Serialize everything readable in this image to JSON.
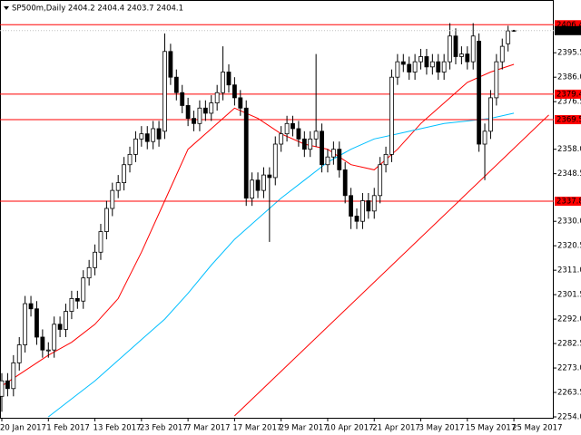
{
  "chart_data": {
    "type": "candlestick",
    "title": "SP500m,Daily  2404.2 2404.4 2403.7 2404.1",
    "categories": [
      "20 Jan 2017",
      null,
      null,
      null,
      null,
      null,
      null,
      null,
      "1 Feb 2017",
      null,
      null,
      null,
      null,
      null,
      null,
      null,
      "13 Feb 2017",
      null,
      null,
      null,
      null,
      null,
      null,
      null,
      "23 Feb 2017",
      null,
      null,
      null,
      null,
      null,
      null,
      null,
      "7 Mar 2017",
      null,
      null,
      null,
      null,
      null,
      null,
      null,
      "17 Mar 2017",
      null,
      null,
      null,
      null,
      null,
      null,
      null,
      "29 Mar 2017",
      null,
      null,
      null,
      null,
      null,
      null,
      null,
      "10 Apr 2017",
      null,
      null,
      null,
      null,
      null,
      null,
      null,
      "21 Apr 2017",
      null,
      null,
      null,
      null,
      null,
      null,
      null,
      "3 May 2017",
      null,
      null,
      null,
      null,
      null,
      null,
      null,
      "15 May 2017",
      null,
      null,
      null,
      null,
      null,
      null,
      null,
      "25 May 2017"
    ],
    "open": [
      2262,
      2268,
      2265,
      2275,
      2282,
      2298,
      2296,
      2285,
      2280,
      2280,
      2290,
      2288,
      2295,
      2300,
      2299,
      2308,
      2312,
      2318,
      2326,
      2335,
      2342,
      2345,
      2352,
      2356,
      2362,
      2364,
      2361,
      2366,
      2365,
      2396,
      2386,
      2380,
      2375,
      2370,
      2368,
      2374,
      2372,
      2376,
      2380,
      2388,
      2383,
      2378,
      2374,
      2339,
      2346,
      2342,
      2348,
      2347,
      2360,
      2364,
      2368,
      2366,
      2362,
      2358,
      2362,
      2365,
      2352,
      2355,
      2358,
      2350,
      2340,
      2332,
      2330,
      2338,
      2334,
      2340,
      2352,
      2356,
      2386,
      2392,
      2391,
      2388,
      2392,
      2394,
      2390,
      2392,
      2388,
      2392,
      2402,
      2394,
      2395,
      2392,
      2400,
      2360,
      2365,
      2378,
      2392,
      2399,
      2404.2
    ],
    "high": [
      2271,
      2271,
      2278,
      2285,
      2301,
      2301,
      2299,
      2288,
      2283,
      2293,
      2293,
      2298,
      2303,
      2303,
      2311,
      2315,
      2321,
      2329,
      2338,
      2345,
      2348,
      2355,
      2359,
      2365,
      2367,
      2367,
      2369,
      2369,
      2403,
      2399,
      2389,
      2383,
      2378,
      2373,
      2377,
      2377,
      2379,
      2383,
      2398,
      2391,
      2386,
      2381,
      2377,
      2349,
      2349,
      2351,
      2351,
      2363,
      2367,
      2371,
      2371,
      2369,
      2365,
      2365,
      2395,
      2368,
      2358,
      2361,
      2361,
      2353,
      2343,
      2335,
      2341,
      2341,
      2343,
      2355,
      2359,
      2389,
      2395,
      2395,
      2394,
      2395,
      2397,
      2397,
      2395,
      2395,
      2395,
      2407,
      2405,
      2398,
      2398,
      2407,
      2403,
      2368,
      2381,
      2395,
      2401,
      2406,
      2404.4
    ],
    "low": [
      2256,
      2262,
      2262,
      2272,
      2279,
      2293,
      2282,
      2277,
      2277,
      2277,
      2285,
      2285,
      2292,
      2296,
      2296,
      2305,
      2309,
      2315,
      2323,
      2332,
      2339,
      2342,
      2349,
      2353,
      2359,
      2358,
      2358,
      2359,
      2362,
      2383,
      2377,
      2372,
      2367,
      2365,
      2365,
      2369,
      2369,
      2373,
      2377,
      2380,
      2375,
      2371,
      2336,
      2336,
      2339,
      2339,
      2322,
      2344,
      2357,
      2361,
      2363,
      2359,
      2355,
      2355,
      2359,
      2349,
      2349,
      2352,
      2347,
      2337,
      2327,
      2327,
      2327,
      2331,
      2331,
      2337,
      2349,
      2353,
      2383,
      2388,
      2385,
      2385,
      2389,
      2387,
      2387,
      2385,
      2385,
      2389,
      2391,
      2391,
      2389,
      2389,
      2357,
      2346,
      2362,
      2375,
      2389,
      2396,
      2403.7
    ],
    "close": [
      2268,
      2265,
      2275,
      2282,
      2298,
      2296,
      2285,
      2280,
      2280,
      2290,
      2288,
      2295,
      2300,
      2299,
      2308,
      2312,
      2318,
      2326,
      2335,
      2342,
      2345,
      2352,
      2356,
      2362,
      2364,
      2361,
      2366,
      2362,
      2396,
      2386,
      2380,
      2375,
      2370,
      2368,
      2374,
      2372,
      2376,
      2380,
      2388,
      2383,
      2378,
      2374,
      2339,
      2346,
      2342,
      2348,
      2347,
      2360,
      2364,
      2368,
      2366,
      2362,
      2358,
      2362,
      2365,
      2352,
      2355,
      2358,
      2350,
      2340,
      2332,
      2330,
      2338,
      2334,
      2340,
      2352,
      2356,
      2386,
      2392,
      2391,
      2388,
      2392,
      2394,
      2390,
      2392,
      2388,
      2392,
      2402,
      2394,
      2395,
      2392,
      2402,
      2360,
      2365,
      2378,
      2392,
      2398,
      2404,
      2404.1
    ],
    "lines": [
      {
        "color": "#ff0000",
        "x": [
          0,
          4,
          8,
          12,
          16,
          20,
          24,
          28,
          32,
          36,
          40,
          44,
          48,
          52,
          56,
          60,
          64,
          68,
          72,
          76,
          80,
          84,
          88
        ],
        "values": [
          2266,
          2272,
          2278,
          2283,
          2290,
          2300,
          2318,
          2338,
          2358,
          2366,
          2374,
          2370,
          2364,
          2360,
          2358,
          2352,
          2350,
          2358,
          2368,
          2376,
          2384,
          2388,
          2391
        ]
      },
      {
        "color": "#00bfff",
        "x": [
          8,
          12,
          16,
          20,
          24,
          28,
          32,
          36,
          40,
          44,
          48,
          52,
          56,
          60,
          64,
          68,
          72,
          76,
          80,
          84,
          88
        ],
        "values": [
          2254,
          2261,
          2268,
          2276,
          2284,
          2292,
          2302,
          2313,
          2323,
          2331,
          2339,
          2346,
          2353,
          2358,
          2362,
          2364,
          2366,
          2368,
          2369,
          2370,
          2372
        ]
      },
      {
        "color": "#ff0000",
        "x": [
          40,
          94
        ],
        "values": [
          2254.4,
          2371.3
        ]
      }
    ],
    "levels": [
      2406.4,
      2379.4,
      2369.5,
      2337.8
    ],
    "level_color": "#ff0000",
    "current": 2404.1,
    "ylim": [
      2253.3,
      2416.0
    ],
    "yticks": [
      2395.5,
      {
        "value": 2386,
        "label": "2386.0"
      },
      2376.5,
      {
        "value": 2358,
        "label": "2358.0"
      },
      2348.5,
      {
        "value": 2330,
        "label": "2330.0"
      },
      2320.5,
      {
        "value": 2311,
        "label": "2311.0"
      },
      2301.5,
      {
        "value": 2292,
        "label": "2292.0"
      },
      2282.5,
      {
        "value": 2273,
        "label": "2273.0"
      },
      2263.5,
      {
        "value": 2254,
        "label": "2254.0"
      }
    ]
  }
}
